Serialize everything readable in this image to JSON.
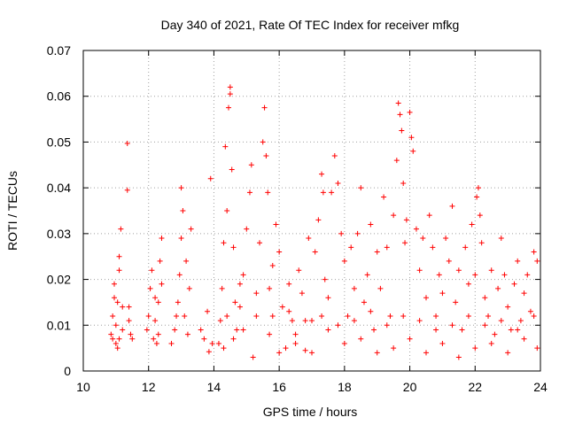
{
  "chart_data": {
    "type": "scatter",
    "title": "Day 340 of 2021, Rate Of TEC Index for receiver mfkg",
    "xlabel": "GPS time / hours",
    "ylabel": "ROTI / TECUs",
    "xlim": [
      10,
      24
    ],
    "ylim": [
      0,
      0.07
    ],
    "xticks": [
      10,
      12,
      14,
      16,
      18,
      20,
      22,
      24
    ],
    "yticks": [
      0,
      0.01,
      0.02,
      0.03,
      0.04,
      0.05,
      0.06,
      0.07
    ],
    "ytick_labels": [
      "0",
      "0.01",
      "0.02",
      "0.03",
      "0.04",
      "0.05",
      "0.06",
      "0.07"
    ],
    "grid": true,
    "marker": "plus",
    "series_color": "#ff0000",
    "series": [
      {
        "name": "ROTI",
        "points": [
          [
            10.85,
            0.008
          ],
          [
            10.9,
            0.012
          ],
          [
            10.95,
            0.019
          ],
          [
            11.0,
            0.006
          ],
          [
            11.05,
            0.015
          ],
          [
            11.1,
            0.022
          ],
          [
            11.15,
            0.031
          ],
          [
            11.2,
            0.009
          ],
          [
            10.9,
            0.007
          ],
          [
            11.0,
            0.01
          ],
          [
            11.05,
            0.005
          ],
          [
            11.1,
            0.007
          ],
          [
            10.95,
            0.016
          ],
          [
            11.1,
            0.025
          ],
          [
            11.2,
            0.014
          ],
          [
            11.35,
            0.0497
          ],
          [
            11.35,
            0.0395
          ],
          [
            11.4,
            0.014
          ],
          [
            11.4,
            0.011
          ],
          [
            11.45,
            0.008
          ],
          [
            11.5,
            0.007
          ],
          [
            11.95,
            0.009
          ],
          [
            12.0,
            0.012
          ],
          [
            12.05,
            0.018
          ],
          [
            12.1,
            0.022
          ],
          [
            12.15,
            0.007
          ],
          [
            12.2,
            0.011
          ],
          [
            12.25,
            0.006
          ],
          [
            12.3,
            0.015
          ],
          [
            12.35,
            0.024
          ],
          [
            12.4,
            0.029
          ],
          [
            12.3,
            0.008
          ],
          [
            12.2,
            0.016
          ],
          [
            12.4,
            0.019
          ],
          [
            12.7,
            0.006
          ],
          [
            12.8,
            0.009
          ],
          [
            12.9,
            0.015
          ],
          [
            12.95,
            0.021
          ],
          [
            13.0,
            0.029
          ],
          [
            13.05,
            0.035
          ],
          [
            13.0,
            0.04
          ],
          [
            13.1,
            0.012
          ],
          [
            13.2,
            0.008
          ],
          [
            13.3,
            0.031
          ],
          [
            13.25,
            0.018
          ],
          [
            13.15,
            0.024
          ],
          [
            12.85,
            0.012
          ],
          [
            13.6,
            0.009
          ],
          [
            13.7,
            0.007
          ],
          [
            13.8,
            0.013
          ],
          [
            13.85,
            0.0042
          ],
          [
            13.9,
            0.042
          ],
          [
            13.95,
            0.006
          ],
          [
            14.15,
            0.006
          ],
          [
            14.2,
            0.011
          ],
          [
            14.25,
            0.018
          ],
          [
            14.3,
            0.028
          ],
          [
            14.35,
            0.049
          ],
          [
            14.4,
            0.035
          ],
          [
            14.45,
            0.0575
          ],
          [
            14.5,
            0.062
          ],
          [
            14.5,
            0.0605
          ],
          [
            14.55,
            0.044
          ],
          [
            14.6,
            0.027
          ],
          [
            14.65,
            0.015
          ],
          [
            14.7,
            0.009
          ],
          [
            14.8,
            0.019
          ],
          [
            14.9,
            0.021
          ],
          [
            15.0,
            0.031
          ],
          [
            15.1,
            0.039
          ],
          [
            15.15,
            0.045
          ],
          [
            15.3,
            0.012
          ],
          [
            15.4,
            0.028
          ],
          [
            15.5,
            0.05
          ],
          [
            15.55,
            0.0575
          ],
          [
            15.6,
            0.047
          ],
          [
            15.65,
            0.039
          ],
          [
            15.7,
            0.018
          ],
          [
            15.8,
            0.023
          ],
          [
            15.9,
            0.032
          ],
          [
            16.0,
            0.026
          ],
          [
            16.1,
            0.014
          ],
          [
            16.2,
            0.005
          ],
          [
            16.3,
            0.019
          ],
          [
            16.4,
            0.011
          ],
          [
            16.5,
            0.008
          ],
          [
            16.6,
            0.022
          ],
          [
            16.7,
            0.017
          ],
          [
            16.8,
            0.0045
          ],
          [
            16.9,
            0.029
          ],
          [
            17.0,
            0.011
          ],
          [
            17.1,
            0.026
          ],
          [
            17.2,
            0.033
          ],
          [
            17.3,
            0.043
          ],
          [
            17.35,
            0.039
          ],
          [
            17.4,
            0.02
          ],
          [
            17.5,
            0.016
          ],
          [
            17.6,
            0.039
          ],
          [
            17.7,
            0.047
          ],
          [
            17.8,
            0.041
          ],
          [
            17.9,
            0.03
          ],
          [
            18.0,
            0.024
          ],
          [
            18.1,
            0.012
          ],
          [
            18.2,
            0.027
          ],
          [
            18.3,
            0.018
          ],
          [
            18.4,
            0.03
          ],
          [
            18.5,
            0.04
          ],
          [
            18.6,
            0.015
          ],
          [
            18.7,
            0.021
          ],
          [
            18.8,
            0.032
          ],
          [
            18.9,
            0.009
          ],
          [
            19.0,
            0.026
          ],
          [
            19.1,
            0.018
          ],
          [
            19.2,
            0.038
          ],
          [
            19.3,
            0.027
          ],
          [
            19.4,
            0.012
          ],
          [
            19.5,
            0.034
          ],
          [
            19.6,
            0.046
          ],
          [
            19.65,
            0.0585
          ],
          [
            19.7,
            0.056
          ],
          [
            19.75,
            0.0525
          ],
          [
            19.8,
            0.041
          ],
          [
            19.85,
            0.028
          ],
          [
            19.9,
            0.033
          ],
          [
            20.0,
            0.0565
          ],
          [
            20.05,
            0.051
          ],
          [
            20.1,
            0.048
          ],
          [
            20.2,
            0.031
          ],
          [
            20.3,
            0.022
          ],
          [
            20.4,
            0.029
          ],
          [
            20.5,
            0.016
          ],
          [
            20.6,
            0.034
          ],
          [
            20.7,
            0.027
          ],
          [
            20.8,
            0.012
          ],
          [
            20.9,
            0.021
          ],
          [
            21.0,
            0.017
          ],
          [
            21.1,
            0.029
          ],
          [
            21.2,
            0.024
          ],
          [
            21.3,
            0.036
          ],
          [
            21.4,
            0.015
          ],
          [
            21.5,
            0.022
          ],
          [
            21.6,
            0.009
          ],
          [
            21.7,
            0.027
          ],
          [
            21.8,
            0.019
          ],
          [
            21.9,
            0.032
          ],
          [
            22.0,
            0.021
          ],
          [
            22.05,
            0.038
          ],
          [
            22.1,
            0.04
          ],
          [
            22.15,
            0.034
          ],
          [
            22.2,
            0.028
          ],
          [
            22.3,
            0.016
          ],
          [
            22.4,
            0.012
          ],
          [
            22.5,
            0.022
          ],
          [
            22.6,
            0.008
          ],
          [
            22.7,
            0.018
          ],
          [
            22.8,
            0.029
          ],
          [
            22.9,
            0.021
          ],
          [
            23.0,
            0.014
          ],
          [
            23.1,
            0.009
          ],
          [
            23.2,
            0.019
          ],
          [
            23.3,
            0.024
          ],
          [
            23.4,
            0.011
          ],
          [
            23.5,
            0.017
          ],
          [
            23.6,
            0.021
          ],
          [
            23.7,
            0.013
          ],
          [
            23.8,
            0.026
          ],
          [
            23.9,
            0.024
          ],
          [
            14.3,
            0.005
          ],
          [
            14.6,
            0.007
          ],
          [
            14.9,
            0.009
          ],
          [
            15.2,
            0.003
          ],
          [
            15.7,
            0.008
          ],
          [
            16.0,
            0.004
          ],
          [
            16.5,
            0.006
          ],
          [
            17.0,
            0.004
          ],
          [
            17.5,
            0.009
          ],
          [
            18.0,
            0.006
          ],
          [
            18.5,
            0.007
          ],
          [
            19.0,
            0.004
          ],
          [
            19.5,
            0.005
          ],
          [
            20.0,
            0.007
          ],
          [
            20.5,
            0.004
          ],
          [
            21.0,
            0.006
          ],
          [
            21.5,
            0.003
          ],
          [
            22.0,
            0.005
          ],
          [
            22.5,
            0.006
          ],
          [
            23.0,
            0.004
          ],
          [
            23.5,
            0.007
          ],
          [
            23.9,
            0.005
          ],
          [
            14.4,
            0.012
          ],
          [
            14.8,
            0.014
          ],
          [
            15.3,
            0.017
          ],
          [
            15.8,
            0.012
          ],
          [
            16.3,
            0.013
          ],
          [
            16.8,
            0.011
          ],
          [
            17.3,
            0.012
          ],
          [
            17.8,
            0.01
          ],
          [
            18.3,
            0.011
          ],
          [
            18.8,
            0.013
          ],
          [
            19.3,
            0.01
          ],
          [
            19.8,
            0.012
          ],
          [
            20.3,
            0.011
          ],
          [
            20.8,
            0.009
          ],
          [
            21.3,
            0.01
          ],
          [
            21.8,
            0.012
          ],
          [
            22.3,
            0.01
          ],
          [
            22.8,
            0.011
          ],
          [
            23.3,
            0.009
          ],
          [
            23.8,
            0.012
          ]
        ]
      }
    ]
  }
}
